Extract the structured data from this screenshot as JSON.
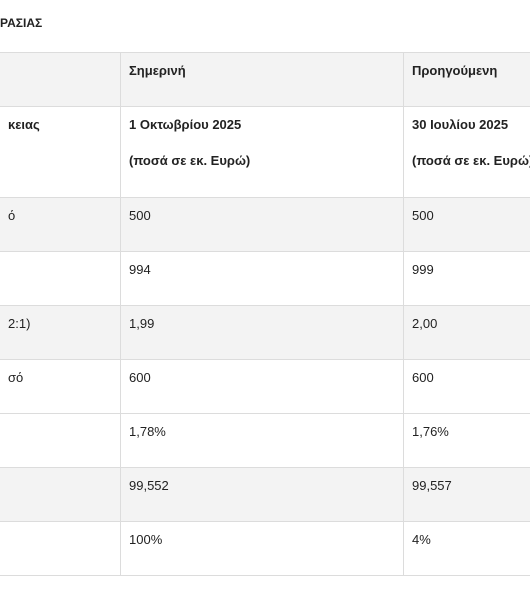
{
  "title": "ΡΑΣΙΑΣ",
  "table": {
    "rows": [
      {
        "cells": [
          [
            "Σημερινή"
          ],
          [
            "Προηγούμενη"
          ]
        ]
      },
      {
        "label": "κειας",
        "cells": [
          [
            "1 Οκτωβρίου 2025",
            "(ποσά σε εκ. Ευρώ)"
          ],
          [
            "30 Ιουλίου 2025",
            "(ποσά σε εκ. Ευρώ)"
          ]
        ]
      },
      {
        "label": "ό",
        "cells": [
          [
            "500"
          ],
          [
            "500"
          ]
        ]
      },
      {
        "cells": [
          [
            "994"
          ],
          [
            "999"
          ]
        ]
      },
      {
        "label": "2:1)",
        "cells": [
          [
            "1,99"
          ],
          [
            "2,00"
          ]
        ]
      },
      {
        "label": "σό",
        "cells": [
          [
            "600"
          ],
          [
            "600"
          ]
        ]
      },
      {
        "cells": [
          [
            "1,78%"
          ],
          [
            "1,76%"
          ]
        ]
      },
      {
        "cells": [
          [
            "99,552"
          ],
          [
            "99,557"
          ]
        ]
      },
      {
        "cells": [
          [
            "100%"
          ],
          [
            "4%"
          ]
        ]
      }
    ]
  }
}
